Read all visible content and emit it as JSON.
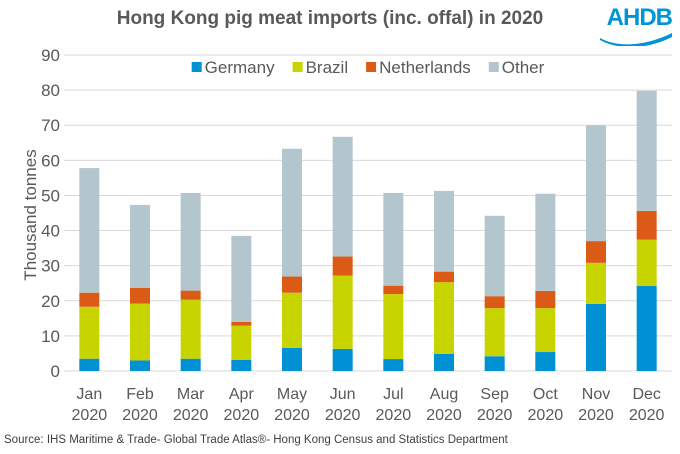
{
  "title": "Hong Kong pig meat imports (inc. offal) in 2020",
  "logo": "AHDB",
  "source": "Source: IHS Maritime & Trade- Global Trade Atlas®- Hong Kong Census and Statistics Department",
  "chart_data": {
    "type": "bar",
    "stacked": true,
    "title": "Hong Kong pig meat imports (inc. offal) in 2020",
    "xlabel": "",
    "ylabel": "Thousand tonnes",
    "ylim": [
      0,
      90
    ],
    "yticks": [
      0,
      10,
      20,
      30,
      40,
      50,
      60,
      70,
      80,
      90
    ],
    "grid": true,
    "legend_position": "top",
    "categories": [
      [
        "Jan",
        "2020"
      ],
      [
        "Feb",
        "2020"
      ],
      [
        "Mar",
        "2020"
      ],
      [
        "Apr",
        "2020"
      ],
      [
        "May",
        "2020"
      ],
      [
        "Jun",
        "2020"
      ],
      [
        "Jul",
        "2020"
      ],
      [
        "Aug",
        "2020"
      ],
      [
        "Sep",
        "2020"
      ],
      [
        "Oct",
        "2020"
      ],
      [
        "Nov",
        "2020"
      ],
      [
        "Dec",
        "2020"
      ]
    ],
    "series": [
      {
        "name": "Germany",
        "color": "#0090d4",
        "values": [
          3.5,
          3.0,
          3.5,
          3.2,
          6.6,
          6.3,
          3.4,
          4.9,
          4.2,
          5.4,
          19.1,
          24.2
        ]
      },
      {
        "name": "Brazil",
        "color": "#c8d400",
        "values": [
          14.8,
          16.2,
          16.8,
          9.7,
          15.7,
          20.9,
          18.5,
          20.4,
          13.7,
          12.5,
          11.7,
          13.2
        ]
      },
      {
        "name": "Netherlands",
        "color": "#db5b16",
        "values": [
          4.0,
          4.5,
          2.6,
          1.1,
          4.6,
          5.4,
          2.4,
          3.0,
          3.4,
          4.9,
          6.2,
          8.2
        ]
      },
      {
        "name": "Other",
        "color": "#b4c6cd",
        "values": [
          35.5,
          23.6,
          27.8,
          24.5,
          36.4,
          34.1,
          26.4,
          23.0,
          22.9,
          27.7,
          33.0,
          34.2
        ]
      }
    ]
  }
}
